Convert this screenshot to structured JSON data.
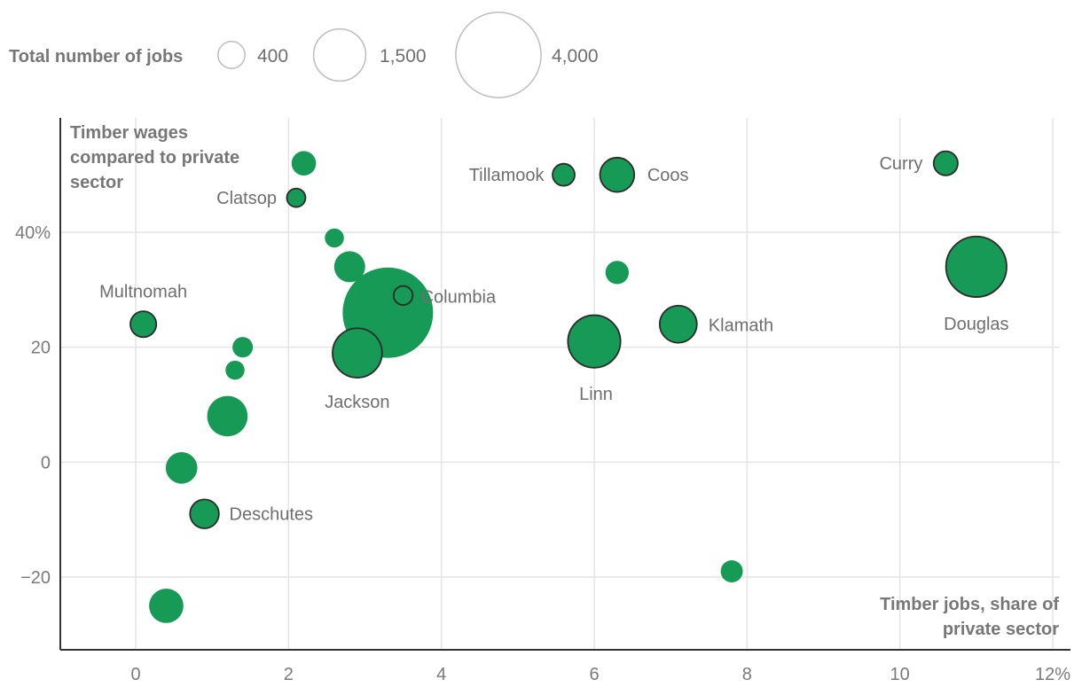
{
  "colors": {
    "bubble": "#169a55",
    "outline": "#2b2b2b",
    "grid": "#e4e4e4",
    "axis": "#333333",
    "legend_circle": "#bdbdbd"
  },
  "legend": {
    "title": "Total number of jobs",
    "sizes": [
      {
        "label": "400",
        "value": 400
      },
      {
        "label": "1,500",
        "value": 1500
      },
      {
        "label": "4,000",
        "value": 4000
      }
    ]
  },
  "chart_data": {
    "type": "scatter",
    "subtype": "bubble",
    "title": "",
    "ylabel": "Timber wages compared to private sector",
    "xlabel": "Timber jobs, share of private sector",
    "xlim": [
      -1,
      12
    ],
    "ylim": [
      -33,
      60
    ],
    "x_ticks": [
      {
        "value": 0,
        "label": "0"
      },
      {
        "value": 2,
        "label": "2"
      },
      {
        "value": 4,
        "label": "4"
      },
      {
        "value": 6,
        "label": "6"
      },
      {
        "value": 8,
        "label": "8"
      },
      {
        "value": 10,
        "label": "10"
      },
      {
        "value": 12,
        "label": "12%"
      }
    ],
    "y_ticks": [
      {
        "value": 40,
        "label": "40%"
      },
      {
        "value": 20,
        "label": "20"
      },
      {
        "value": 0,
        "label": "0"
      },
      {
        "value": -20,
        "label": "-20"
      }
    ],
    "points": [
      {
        "name": "",
        "x": 3.3,
        "y": 26,
        "jobs": 4500,
        "outlined": false
      },
      {
        "name": "",
        "x": 2.2,
        "y": 52,
        "jobs": 330,
        "outlined": false
      },
      {
        "name": "Clatsop",
        "x": 2.1,
        "y": 46,
        "jobs": 190,
        "outlined": true
      },
      {
        "name": "",
        "x": 2.6,
        "y": 39,
        "jobs": 200,
        "outlined": false
      },
      {
        "name": "",
        "x": 2.8,
        "y": 34,
        "jobs": 530,
        "outlined": false
      },
      {
        "name": "Multnomah",
        "x": 0.1,
        "y": 24,
        "jobs": 370,
        "outlined": true
      },
      {
        "name": "",
        "x": 1.4,
        "y": 20,
        "jobs": 230,
        "outlined": false
      },
      {
        "name": "",
        "x": 1.3,
        "y": 16,
        "jobs": 200,
        "outlined": false
      },
      {
        "name": "",
        "x": 1.2,
        "y": 8,
        "jobs": 900,
        "outlined": false
      },
      {
        "name": "",
        "x": 0.6,
        "y": -1,
        "jobs": 550,
        "outlined": false
      },
      {
        "name": "Deschutes",
        "x": 0.9,
        "y": -9,
        "jobs": 460,
        "outlined": true
      },
      {
        "name": "",
        "x": 0.4,
        "y": -25,
        "jobs": 650,
        "outlined": false
      },
      {
        "name": "Jackson",
        "x": 2.9,
        "y": 19,
        "jobs": 1350,
        "outlined": true
      },
      {
        "name": "Columbia",
        "x": 3.5,
        "y": 29,
        "jobs": 200,
        "outlined": true
      },
      {
        "name": "Tillamook",
        "x": 5.6,
        "y": 50,
        "jobs": 270,
        "outlined": true
      },
      {
        "name": "Coos",
        "x": 6.3,
        "y": 50,
        "jobs": 650,
        "outlined": true
      },
      {
        "name": "",
        "x": 6.3,
        "y": 33,
        "jobs": 300,
        "outlined": false
      },
      {
        "name": "Linn",
        "x": 6.0,
        "y": 21,
        "jobs": 1520,
        "outlined": true
      },
      {
        "name": "Klamath",
        "x": 7.1,
        "y": 24,
        "jobs": 760,
        "outlined": true
      },
      {
        "name": "",
        "x": 7.8,
        "y": -19,
        "jobs": 270,
        "outlined": false
      },
      {
        "name": "Curry",
        "x": 10.6,
        "y": 52,
        "jobs": 320,
        "outlined": true
      },
      {
        "name": "Douglas",
        "x": 11.0,
        "y": 34,
        "jobs": 2020,
        "outlined": true
      }
    ]
  }
}
